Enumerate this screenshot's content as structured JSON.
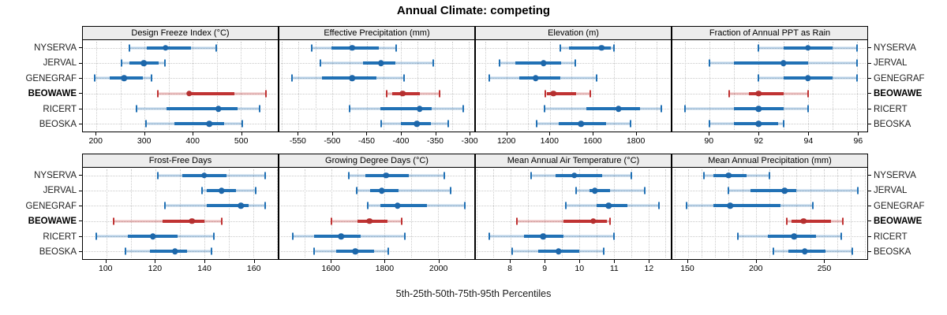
{
  "title": "Annual Climate: competing",
  "caption": "5th-25th-50th-75th-95th Percentiles",
  "sites": [
    "NYSERVA",
    "JERVAL",
    "GENEGRAF",
    "BEOWAWE",
    "RICERT",
    "BEOSKA"
  ],
  "highlight_site": "BEOWAWE",
  "colors": {
    "blue": "#2171b5",
    "blue_dot": "#1d67aa",
    "blue_light": "rgba(33,113,181,0.32)",
    "red": "#c03333",
    "red_dot": "#b53030",
    "red_light": "rgba(192,51,51,0.32)",
    "strip_bg": "#ededed",
    "grid": "#cbcbcb",
    "border": "#000000"
  },
  "chart_data": {
    "type": "dotplot-intervals",
    "layout": {
      "rows": 2,
      "cols": 4,
      "grid": "dotted-minor",
      "legend_position": "none"
    },
    "percentile_labels": [
      "5th",
      "25th",
      "50th",
      "75th",
      "95th"
    ],
    "sites": [
      "NYSERVA",
      "JERVAL",
      "GENEGRAF",
      "BEOWAWE",
      "RICERT",
      "BEOSKA"
    ],
    "panels": [
      {
        "title": "Design Freeze Index (°C)",
        "xlim": [
          172,
          577
        ],
        "ticks": [
          200,
          300,
          400,
          500
        ],
        "grid_step": 50,
        "values": {
          "NYSERVA": [
            268,
            305,
            344,
            397,
            449
          ],
          "JERVAL": [
            253,
            269,
            299,
            329,
            343
          ],
          "GENEGRAF": [
            197,
            227,
            258,
            296,
            315
          ],
          "BEOWAWE": [
            328,
            392,
            393,
            487,
            552
          ],
          "RICERT": [
            283,
            345,
            454,
            493,
            540
          ],
          "BEOSKA": [
            303,
            362,
            435,
            465,
            503
          ]
        }
      },
      {
        "title": "Effective Precipitation (mm)",
        "xlim": [
          -578,
          -292
        ],
        "ticks": [
          -550,
          -500,
          -450,
          -400,
          -350,
          -300
        ],
        "grid_step": 25,
        "values": {
          "NYSERVA": [
            -530,
            -502,
            -471,
            -432,
            -407
          ],
          "JERVAL": [
            -518,
            -455,
            -429,
            -408,
            -352
          ],
          "GENEGRAF": [
            -559,
            -516,
            -471,
            -436,
            -395
          ],
          "BEOWAWE": [
            -420,
            -413,
            -397,
            -372,
            -343
          ],
          "RICERT": [
            -475,
            -430,
            -372,
            -355,
            -308
          ],
          "BEOSKA": [
            -429,
            -400,
            -376,
            -356,
            -330
          ]
        }
      },
      {
        "title": "Elevation (m)",
        "xlim": [
          1055,
          1966
        ],
        "ticks": [
          1200,
          1400,
          1600,
          1800
        ],
        "grid_step": 100,
        "values": {
          "NYSERVA": [
            1448,
            1490,
            1642,
            1685,
            1700
          ],
          "JERVAL": [
            1164,
            1240,
            1372,
            1452,
            1521
          ],
          "GENEGRAF": [
            1116,
            1258,
            1334,
            1448,
            1621
          ],
          "BEOWAWE": [
            1378,
            1387,
            1418,
            1522,
            1588
          ],
          "RICERT": [
            1375,
            1572,
            1722,
            1824,
            1922
          ],
          "BEOSKA": [
            1338,
            1442,
            1547,
            1664,
            1778
          ]
        }
      },
      {
        "title": "Fraction of Annual PPT as Rain",
        "xlim": [
          88.5,
          96.4
        ],
        "ticks": [
          90,
          92,
          94,
          96
        ],
        "grid_step": 1,
        "values": {
          "NYSERVA": [
            92,
            93,
            94,
            95,
            96
          ],
          "JERVAL": [
            90,
            91,
            93,
            94,
            96
          ],
          "GENEGRAF": [
            92,
            93,
            94,
            95,
            96
          ],
          "BEOWAWE": [
            90.8,
            91.6,
            92,
            93,
            94
          ],
          "RICERT": [
            89,
            91,
            92,
            93,
            94
          ],
          "BEOSKA": [
            90,
            91,
            92,
            92.8,
            93
          ]
        }
      },
      {
        "title": "Frost-Free Days",
        "xlim": [
          90.5,
          170
        ],
        "ticks": [
          100,
          120,
          140,
          160
        ],
        "grid_step": 10,
        "values": {
          "NYSERVA": [
            121,
            131,
            140,
            149,
            165
          ],
          "JERVAL": [
            139,
            141,
            147,
            153,
            161
          ],
          "GENEGRAF": [
            124,
            141,
            155,
            158,
            165
          ],
          "BEOWAWE": [
            103,
            123,
            135,
            140,
            147
          ],
          "RICERT": [
            96,
            109,
            119,
            129,
            144
          ],
          "BEOSKA": [
            108,
            118,
            128,
            133,
            143
          ]
        }
      },
      {
        "title": "Growing Degree Days (°C)",
        "xlim": [
          1406,
          2136
        ],
        "ticks": [
          1600,
          1800,
          2000
        ],
        "grid_step": 100,
        "values": {
          "NYSERVA": [
            1665,
            1728,
            1805,
            1892,
            2023
          ],
          "JERVAL": [
            1697,
            1746,
            1790,
            1853,
            2046
          ],
          "GENEGRAF": [
            1736,
            1785,
            1848,
            1960,
            2100
          ],
          "BEOWAWE": [
            1600,
            1700,
            1743,
            1810,
            1864
          ],
          "RICERT": [
            1456,
            1537,
            1637,
            1710,
            1877
          ],
          "BEOSKA": [
            1537,
            1620,
            1690,
            1761,
            1814
          ]
        }
      },
      {
        "title": "Mean Annual Air Temperature (°C)",
        "xlim": [
          7.0,
          12.65
        ],
        "ticks": [
          8,
          9,
          10,
          11,
          12
        ],
        "grid_step": 0.5,
        "values": {
          "NYSERVA": [
            8.6,
            9.3,
            9.85,
            10.65,
            11.5
          ],
          "JERVAL": [
            9.9,
            10.3,
            10.45,
            10.9,
            11.9
          ],
          "GENEGRAF": [
            9.6,
            10.5,
            10.85,
            11.4,
            12.3
          ],
          "BEOWAWE": [
            8.2,
            9.55,
            10.4,
            10.8,
            10.9
          ],
          "RICERT": [
            7.4,
            8.4,
            8.95,
            9.55,
            11.0
          ],
          "BEOSKA": [
            8.05,
            8.8,
            9.4,
            10.0,
            10.7
          ]
        }
      },
      {
        "title": "Mean Annual Precipitation (mm)",
        "xlim": [
          138.5,
          282
        ],
        "ticks": [
          150,
          200,
          250
        ],
        "grid_step": 10,
        "values": {
          "NYSERVA": [
            162,
            169,
            180,
            193,
            210
          ],
          "JERVAL": [
            180,
            196,
            221,
            230,
            275
          ],
          "GENEGRAF": [
            149,
            169,
            181,
            218,
            242
          ],
          "BEOWAWE": [
            223,
            226,
            235,
            255,
            264
          ],
          "RICERT": [
            187,
            209,
            228,
            244,
            263
          ],
          "BEOSKA": [
            213,
            224,
            236,
            251,
            271
          ]
        }
      }
    ]
  }
}
